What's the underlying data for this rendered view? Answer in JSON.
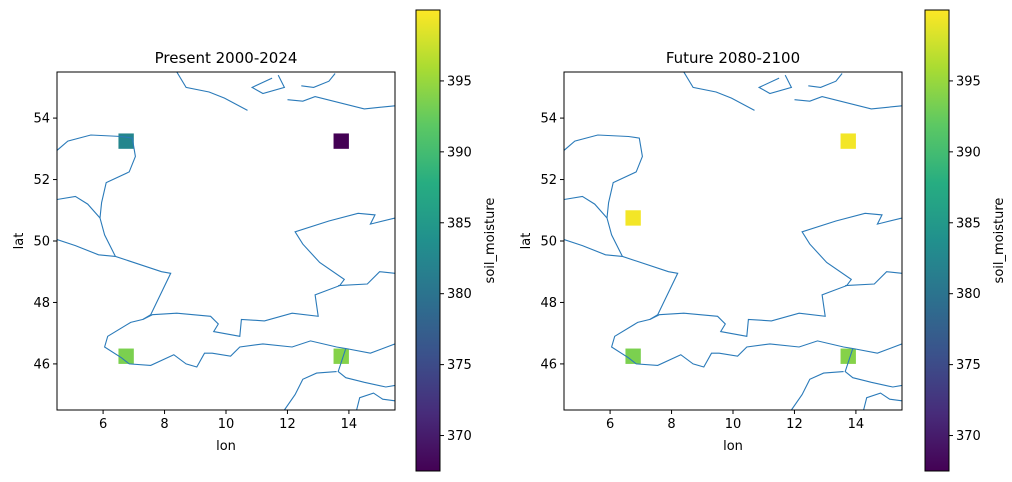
{
  "chart_data": [
    {
      "type": "heatmap",
      "title": "Present 2000-2024",
      "xlabel": "lon",
      "ylabel": "lat",
      "xlim": [
        4.5,
        15.5
      ],
      "ylim": [
        44.5,
        55.5
      ],
      "xticks": [
        "6",
        "8",
        "10",
        "12",
        "14"
      ],
      "yticks": [
        "46",
        "48",
        "50",
        "52",
        "54"
      ],
      "grid": false,
      "cells": [
        {
          "lon": 6.75,
          "lat": 53.25,
          "value": 382.5
        },
        {
          "lon": 13.75,
          "lat": 53.25,
          "value": 367.5
        },
        {
          "lon": 6.75,
          "lat": 46.25,
          "value": 393.5
        },
        {
          "lon": 13.75,
          "lat": 46.25,
          "value": 394.0
        }
      ],
      "colorbar": {
        "label": "soil_moisture",
        "range": [
          367.5,
          400.0
        ],
        "ticks": [
          "370",
          "375",
          "380",
          "385",
          "390",
          "395"
        ],
        "colormap": "viridis"
      }
    },
    {
      "type": "heatmap",
      "title": "Future 2080-2100",
      "xlabel": "lon",
      "ylabel": "lat",
      "xlim": [
        4.5,
        15.5
      ],
      "ylim": [
        44.5,
        55.5
      ],
      "xticks": [
        "6",
        "8",
        "10",
        "12",
        "14"
      ],
      "yticks": [
        "46",
        "48",
        "50",
        "52",
        "54"
      ],
      "grid": false,
      "cells": [
        {
          "lon": 13.75,
          "lat": 53.25,
          "value": 399.5
        },
        {
          "lon": 6.75,
          "lat": 50.75,
          "value": 399.5
        },
        {
          "lon": 6.75,
          "lat": 46.25,
          "value": 393.5
        },
        {
          "lon": 13.75,
          "lat": 46.25,
          "value": 394.0
        }
      ],
      "colorbar": {
        "label": "soil_moisture",
        "range": [
          367.5,
          400.0
        ],
        "ticks": [
          "370",
          "375",
          "380",
          "385",
          "390",
          "395"
        ],
        "colormap": "viridis"
      }
    }
  ],
  "colors": {
    "border_line": "#2a7ab9",
    "axes": "#000000"
  }
}
